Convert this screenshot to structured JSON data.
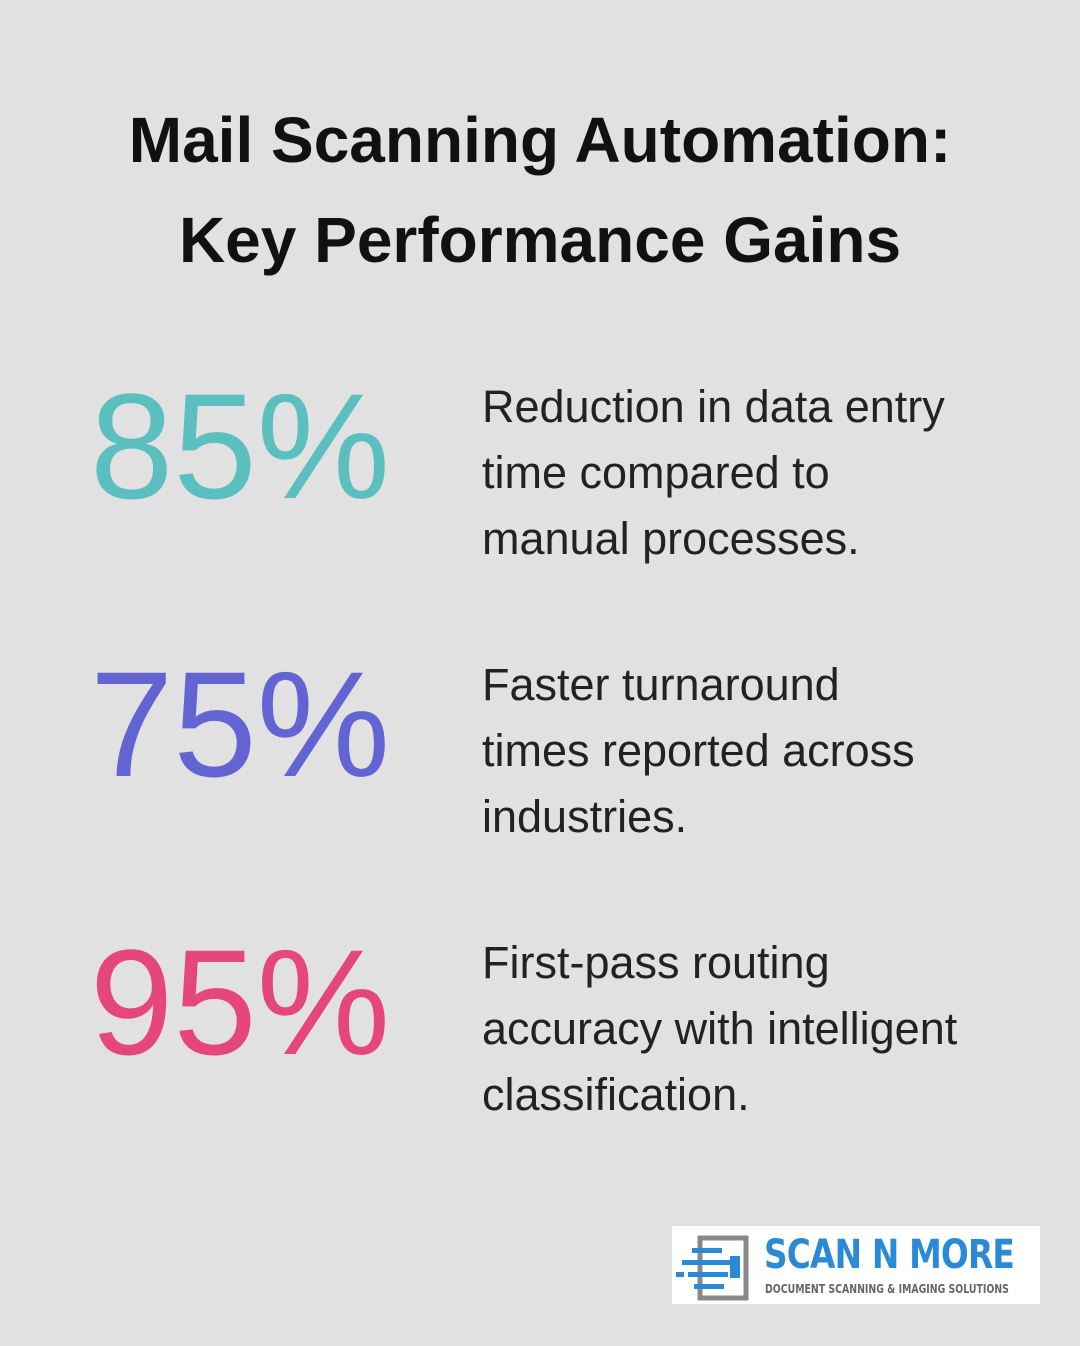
{
  "header": {
    "title_lines": [
      "Mail Scanning Automation:",
      "Key Performance Gains"
    ]
  },
  "stats": [
    {
      "value": "85%",
      "color": "#5bbfbf",
      "description_lines": [
        "Reduction in data entry",
        "time compared to",
        "manual processes."
      ]
    },
    {
      "value": "75%",
      "color": "#6264d4",
      "description_lines": [
        "Faster turnaround",
        "times reported across",
        "industries."
      ]
    },
    {
      "value": "95%",
      "color": "#e5477a",
      "description_lines": [
        "First-pass routing",
        "accuracy with intelligent",
        "classification."
      ]
    }
  ],
  "logo": {
    "name": "SCAN N MORE",
    "tagline": "DOCUMENT SCANNING & IMAGING SOLUTIONS"
  }
}
